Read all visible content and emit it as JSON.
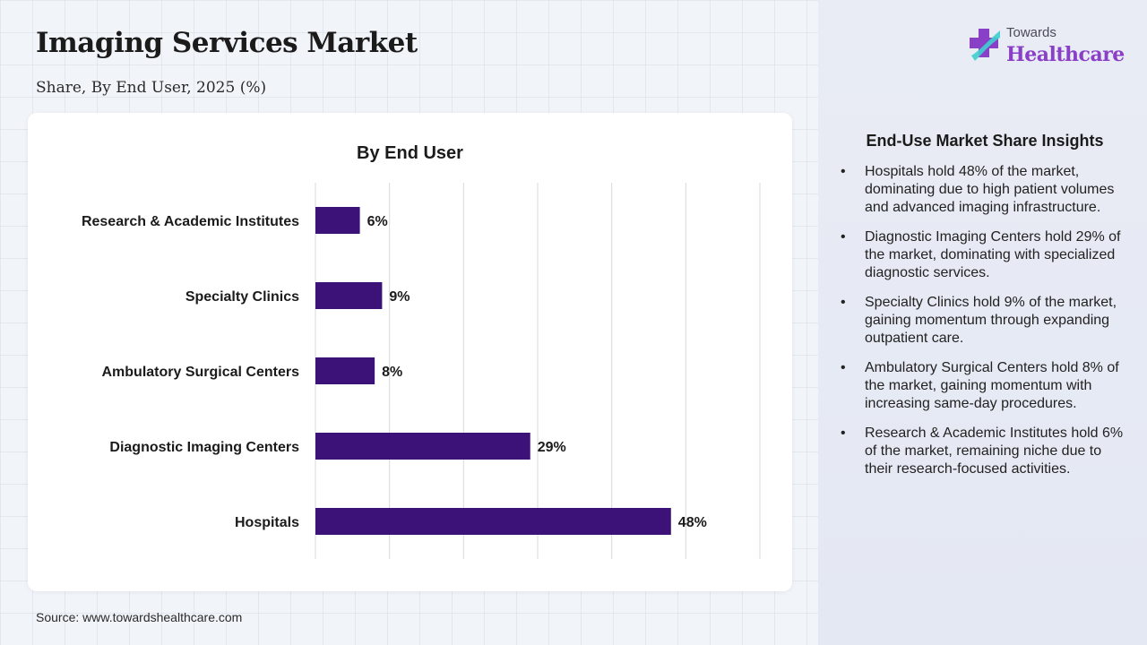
{
  "header": {
    "title": "Imaging Services Market",
    "subtitle": "Share, By End User, 2025 (%)"
  },
  "logo": {
    "top_text": "Towards",
    "main_text": "Healthcare"
  },
  "chart_data": {
    "type": "bar",
    "orientation": "horizontal",
    "title": "By End User",
    "categories": [
      "Research & Academic Institutes",
      "Specialty Clinics",
      "Ambulatory Surgical Centers",
      "Diagnostic Imaging Centers",
      "Hospitals"
    ],
    "values": [
      6,
      9,
      8,
      29,
      48
    ],
    "value_labels": [
      "6%",
      "9%",
      "8%",
      "29%",
      "48%"
    ],
    "xlim": [
      0,
      60
    ],
    "grid": true,
    "bar_color": "#3d1278"
  },
  "insights": {
    "title": "End-Use Market Share Insights",
    "items": [
      "Hospitals hold 48% of the market, dominating due to high patient volumes and advanced imaging infrastructure.",
      "Diagnostic Imaging Centers hold 29% of the market, dominating with specialized diagnostic services.",
      "Specialty Clinics hold 9% of the market, gaining momentum through expanding outpatient care.",
      "Ambulatory Surgical Centers hold 8% of the market, gaining momentum with increasing same-day procedures.",
      "Research & Academic Institutes hold 6% of the market, remaining niche due to their research-focused activities."
    ],
    "bullet": "•"
  },
  "source": "Source: www.towardshealthcare.com"
}
